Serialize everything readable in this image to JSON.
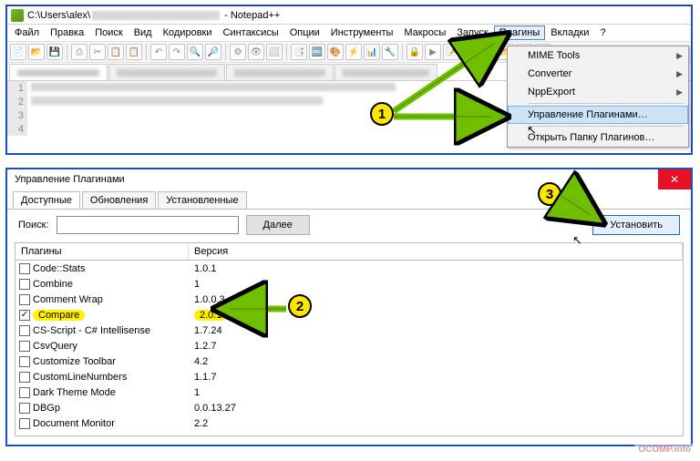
{
  "np": {
    "title_prefix": "C:\\Users\\alex\\",
    "title_suffix": " - Notepad++",
    "menus": [
      "Файл",
      "Правка",
      "Поиск",
      "Вид",
      "Кодировки",
      "Синтаксисы",
      "Опции",
      "Инструменты",
      "Макросы",
      "Запуск",
      "Плагины",
      "Вкладки",
      "?"
    ],
    "gutter": [
      "1",
      "2",
      "3",
      "4"
    ]
  },
  "dropdown": {
    "items": [
      {
        "label": "MIME Tools",
        "arrow": true
      },
      {
        "label": "Converter",
        "arrow": true
      },
      {
        "label": "NppExport",
        "arrow": true
      }
    ],
    "hl_item": "Управление Плагинами…",
    "last_item": "Открыть Папку Плагинов…"
  },
  "pm": {
    "title": "Управление Плагинами",
    "tabs": [
      "Доступные",
      "Обновления",
      "Установленные"
    ],
    "search_label": "Поиск:",
    "next_btn": "Далее",
    "install_btn": "Установить",
    "col_name": "Плагины",
    "col_ver": "Версия",
    "rows": [
      {
        "name": "Code::Stats",
        "ver": "1.0.1",
        "checked": false,
        "hl": false
      },
      {
        "name": "Combine",
        "ver": "1",
        "checked": false,
        "hl": false
      },
      {
        "name": "Comment Wrap",
        "ver": "1.0.0.3",
        "checked": false,
        "hl": false
      },
      {
        "name": "Compare",
        "ver": "2.0.1",
        "checked": true,
        "hl": true
      },
      {
        "name": "CS-Script - C# Intellisense",
        "ver": "1.7.24",
        "checked": false,
        "hl": false
      },
      {
        "name": "CsvQuery",
        "ver": "1.2.7",
        "checked": false,
        "hl": false
      },
      {
        "name": "Customize Toolbar",
        "ver": "4.2",
        "checked": false,
        "hl": false
      },
      {
        "name": "CustomLineNumbers",
        "ver": "1.1.7",
        "checked": false,
        "hl": false
      },
      {
        "name": "Dark Theme Mode",
        "ver": "1",
        "checked": false,
        "hl": false
      },
      {
        "name": "DBGp",
        "ver": "0.0.13.27",
        "checked": false,
        "hl": false
      },
      {
        "name": "Document Monitor",
        "ver": "2.2",
        "checked": false,
        "hl": false
      }
    ]
  },
  "callouts": {
    "n1": "1",
    "n2": "2",
    "n3": "3"
  },
  "watermark": "OCOMP.info",
  "colors": {
    "border": "#1a4ec4",
    "highlight_yellow": "#fff200",
    "arrow_green": "#6fbf00",
    "callout_yellow": "#ffe600",
    "close_red": "#e81123"
  }
}
